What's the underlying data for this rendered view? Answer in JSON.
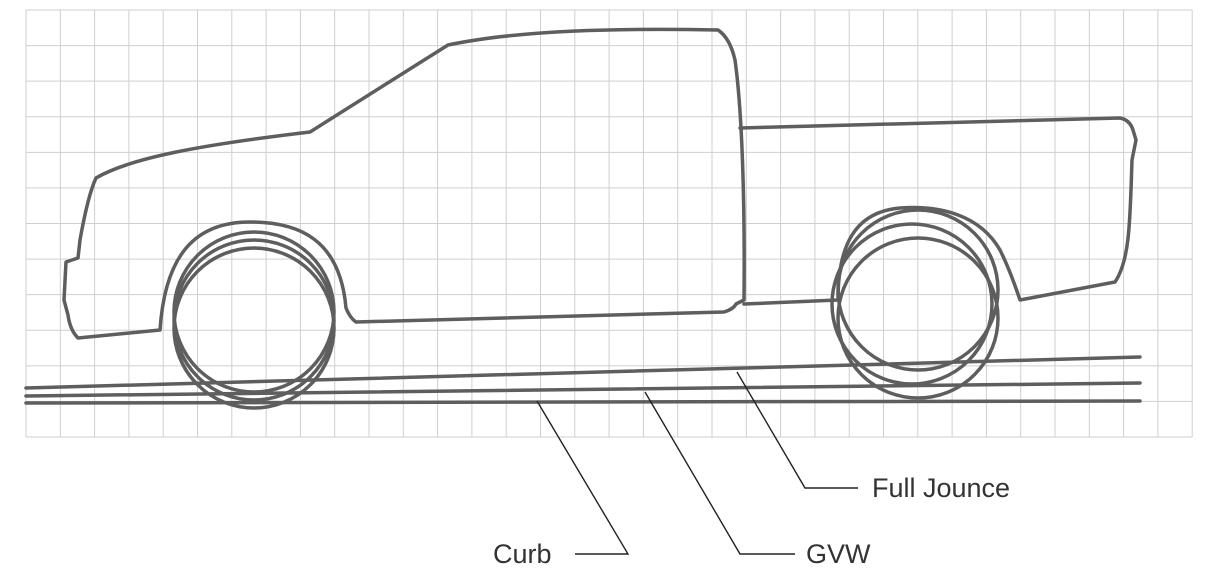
{
  "labels": {
    "full_jounce": "Full Jounce",
    "curb": "Curb",
    "gvw": "GVW"
  },
  "colors": {
    "outline": "#5e5e5e",
    "grid": "#cfcfcf",
    "label_text": "#333333"
  }
}
